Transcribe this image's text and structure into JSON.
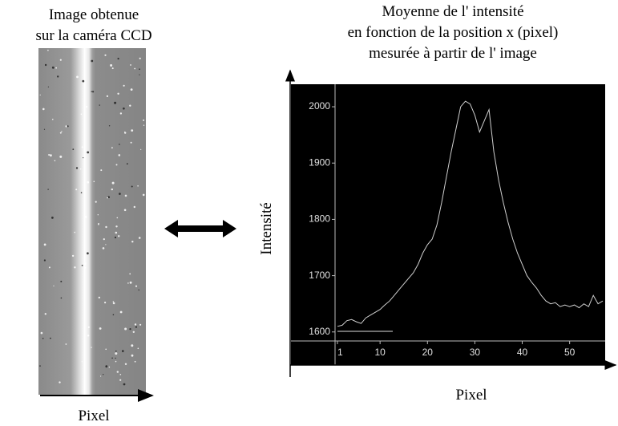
{
  "image_panel": {
    "title": [
      "Image obtenue",
      "sur la caméra CCD"
    ],
    "x_label": "Pixel"
  },
  "chart_data": {
    "type": "line",
    "title": [
      "Moyenne de l' intensité",
      "en fonction de la position x (pixel)",
      "mesurée à partir de l' image"
    ],
    "x_label": "Pixel",
    "y_label": "Intensité",
    "x": [
      1,
      2,
      3,
      4,
      5,
      6,
      7,
      8,
      9,
      10,
      11,
      12,
      13,
      14,
      15,
      16,
      17,
      18,
      19,
      20,
      21,
      22,
      23,
      24,
      25,
      26,
      27,
      28,
      29,
      30,
      31,
      32,
      33,
      34,
      35,
      36,
      37,
      38,
      39,
      40,
      41,
      42,
      43,
      44,
      45,
      46,
      47,
      48,
      49,
      50,
      51,
      52,
      53,
      54,
      55,
      56,
      57
    ],
    "series": [
      {
        "color": "#cfcfcf",
        "values": [
          1610,
          1612,
          1620,
          1622,
          1618,
          1615,
          1625,
          1630,
          1635,
          1640,
          1648,
          1655,
          1665,
          1675,
          1685,
          1695,
          1705,
          1720,
          1740,
          1755,
          1765,
          1790,
          1830,
          1875,
          1920,
          1960,
          2000,
          2010,
          2005,
          1985,
          1955,
          1975,
          1995,
          1920,
          1870,
          1830,
          1795,
          1765,
          1740,
          1720,
          1700,
          1688,
          1678,
          1665,
          1655,
          1650,
          1652,
          1645,
          1648,
          1645,
          1648,
          1643,
          1650,
          1645,
          1665,
          1650,
          1655
        ]
      }
    ],
    "xlim": [
      0.5,
      57.5
    ],
    "ylim": [
      1584,
      2040
    ],
    "xticks": [
      1,
      10,
      20,
      30,
      40,
      50
    ],
    "yticks": [
      1600,
      1700,
      1800,
      1900,
      2000
    ]
  }
}
